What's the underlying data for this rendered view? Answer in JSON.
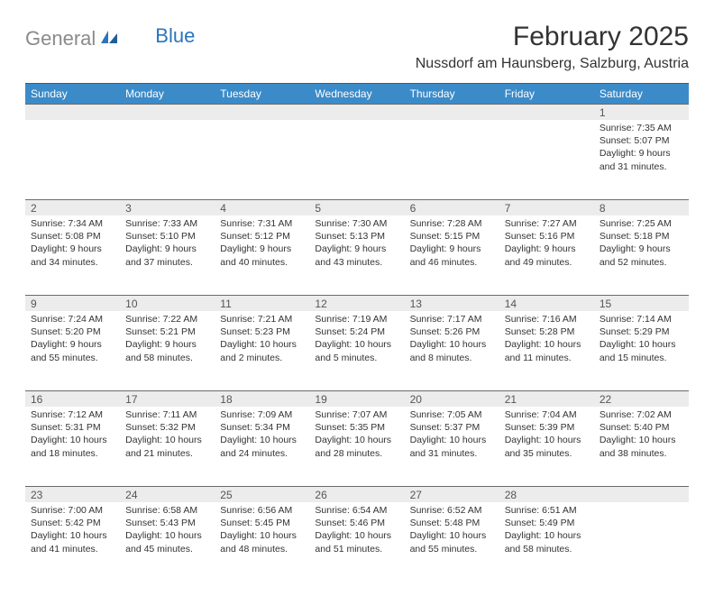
{
  "logo": {
    "gray": "General",
    "blue": "Blue"
  },
  "title": "February 2025",
  "location": "Nussdorf am Haunsberg, Salzburg, Austria",
  "colors": {
    "header_bg": "#3b8bc9",
    "header_text": "#ffffff",
    "daynum_bg": "#ececec",
    "rule": "#6a6a6a",
    "logo_gray": "#8a8a8a",
    "logo_blue": "#2a75bb"
  },
  "day_headers": [
    "Sunday",
    "Monday",
    "Tuesday",
    "Wednesday",
    "Thursday",
    "Friday",
    "Saturday"
  ],
  "weeks": [
    [
      null,
      null,
      null,
      null,
      null,
      null,
      {
        "n": "1",
        "sr": "Sunrise: 7:35 AM",
        "ss": "Sunset: 5:07 PM",
        "dl": "Daylight: 9 hours and 31 minutes."
      }
    ],
    [
      {
        "n": "2",
        "sr": "Sunrise: 7:34 AM",
        "ss": "Sunset: 5:08 PM",
        "dl": "Daylight: 9 hours and 34 minutes."
      },
      {
        "n": "3",
        "sr": "Sunrise: 7:33 AM",
        "ss": "Sunset: 5:10 PM",
        "dl": "Daylight: 9 hours and 37 minutes."
      },
      {
        "n": "4",
        "sr": "Sunrise: 7:31 AM",
        "ss": "Sunset: 5:12 PM",
        "dl": "Daylight: 9 hours and 40 minutes."
      },
      {
        "n": "5",
        "sr": "Sunrise: 7:30 AM",
        "ss": "Sunset: 5:13 PM",
        "dl": "Daylight: 9 hours and 43 minutes."
      },
      {
        "n": "6",
        "sr": "Sunrise: 7:28 AM",
        "ss": "Sunset: 5:15 PM",
        "dl": "Daylight: 9 hours and 46 minutes."
      },
      {
        "n": "7",
        "sr": "Sunrise: 7:27 AM",
        "ss": "Sunset: 5:16 PM",
        "dl": "Daylight: 9 hours and 49 minutes."
      },
      {
        "n": "8",
        "sr": "Sunrise: 7:25 AM",
        "ss": "Sunset: 5:18 PM",
        "dl": "Daylight: 9 hours and 52 minutes."
      }
    ],
    [
      {
        "n": "9",
        "sr": "Sunrise: 7:24 AM",
        "ss": "Sunset: 5:20 PM",
        "dl": "Daylight: 9 hours and 55 minutes."
      },
      {
        "n": "10",
        "sr": "Sunrise: 7:22 AM",
        "ss": "Sunset: 5:21 PM",
        "dl": "Daylight: 9 hours and 58 minutes."
      },
      {
        "n": "11",
        "sr": "Sunrise: 7:21 AM",
        "ss": "Sunset: 5:23 PM",
        "dl": "Daylight: 10 hours and 2 minutes."
      },
      {
        "n": "12",
        "sr": "Sunrise: 7:19 AM",
        "ss": "Sunset: 5:24 PM",
        "dl": "Daylight: 10 hours and 5 minutes."
      },
      {
        "n": "13",
        "sr": "Sunrise: 7:17 AM",
        "ss": "Sunset: 5:26 PM",
        "dl": "Daylight: 10 hours and 8 minutes."
      },
      {
        "n": "14",
        "sr": "Sunrise: 7:16 AM",
        "ss": "Sunset: 5:28 PM",
        "dl": "Daylight: 10 hours and 11 minutes."
      },
      {
        "n": "15",
        "sr": "Sunrise: 7:14 AM",
        "ss": "Sunset: 5:29 PM",
        "dl": "Daylight: 10 hours and 15 minutes."
      }
    ],
    [
      {
        "n": "16",
        "sr": "Sunrise: 7:12 AM",
        "ss": "Sunset: 5:31 PM",
        "dl": "Daylight: 10 hours and 18 minutes."
      },
      {
        "n": "17",
        "sr": "Sunrise: 7:11 AM",
        "ss": "Sunset: 5:32 PM",
        "dl": "Daylight: 10 hours and 21 minutes."
      },
      {
        "n": "18",
        "sr": "Sunrise: 7:09 AM",
        "ss": "Sunset: 5:34 PM",
        "dl": "Daylight: 10 hours and 24 minutes."
      },
      {
        "n": "19",
        "sr": "Sunrise: 7:07 AM",
        "ss": "Sunset: 5:35 PM",
        "dl": "Daylight: 10 hours and 28 minutes."
      },
      {
        "n": "20",
        "sr": "Sunrise: 7:05 AM",
        "ss": "Sunset: 5:37 PM",
        "dl": "Daylight: 10 hours and 31 minutes."
      },
      {
        "n": "21",
        "sr": "Sunrise: 7:04 AM",
        "ss": "Sunset: 5:39 PM",
        "dl": "Daylight: 10 hours and 35 minutes."
      },
      {
        "n": "22",
        "sr": "Sunrise: 7:02 AM",
        "ss": "Sunset: 5:40 PM",
        "dl": "Daylight: 10 hours and 38 minutes."
      }
    ],
    [
      {
        "n": "23",
        "sr": "Sunrise: 7:00 AM",
        "ss": "Sunset: 5:42 PM",
        "dl": "Daylight: 10 hours and 41 minutes."
      },
      {
        "n": "24",
        "sr": "Sunrise: 6:58 AM",
        "ss": "Sunset: 5:43 PM",
        "dl": "Daylight: 10 hours and 45 minutes."
      },
      {
        "n": "25",
        "sr": "Sunrise: 6:56 AM",
        "ss": "Sunset: 5:45 PM",
        "dl": "Daylight: 10 hours and 48 minutes."
      },
      {
        "n": "26",
        "sr": "Sunrise: 6:54 AM",
        "ss": "Sunset: 5:46 PM",
        "dl": "Daylight: 10 hours and 51 minutes."
      },
      {
        "n": "27",
        "sr": "Sunrise: 6:52 AM",
        "ss": "Sunset: 5:48 PM",
        "dl": "Daylight: 10 hours and 55 minutes."
      },
      {
        "n": "28",
        "sr": "Sunrise: 6:51 AM",
        "ss": "Sunset: 5:49 PM",
        "dl": "Daylight: 10 hours and 58 minutes."
      },
      null
    ]
  ]
}
